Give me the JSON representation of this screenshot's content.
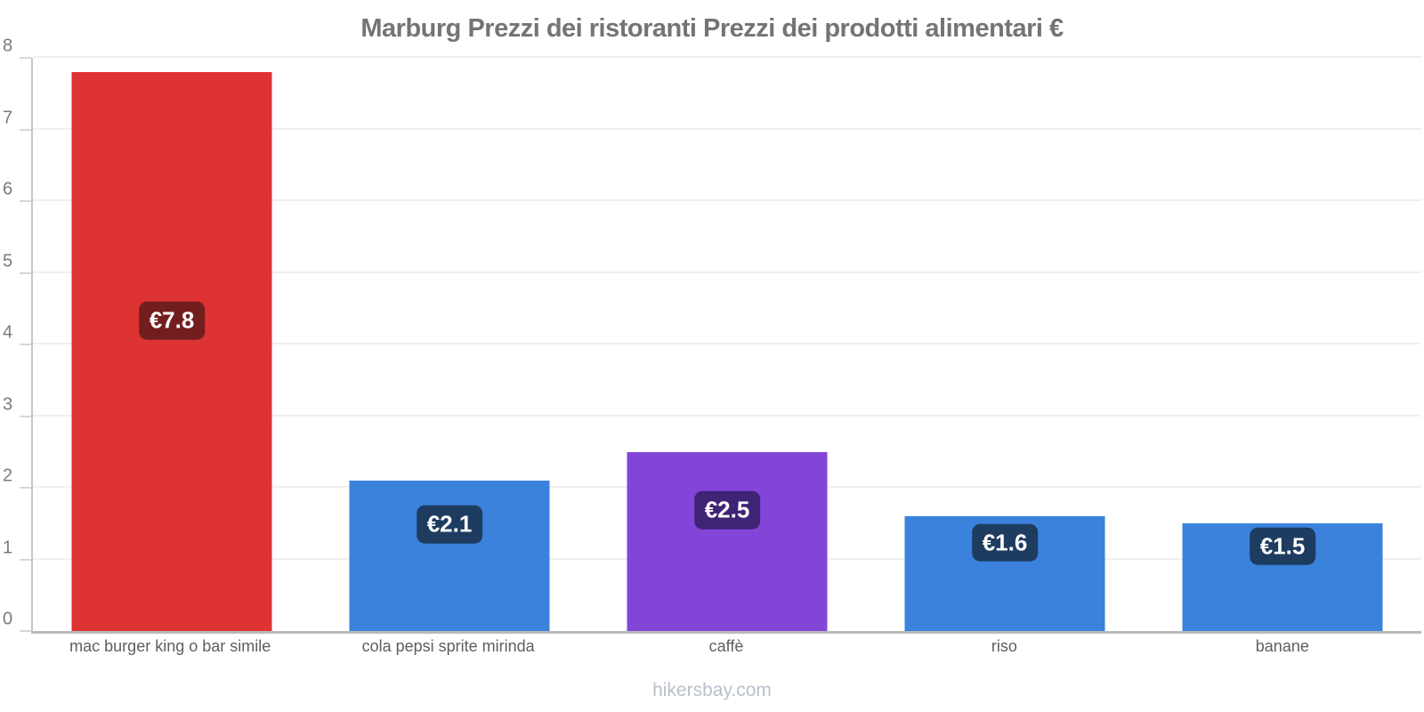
{
  "title": "Marburg Prezzi dei ristoranti Prezzi dei prodotti alimentari €",
  "footer": "hikersbay.com",
  "colors": {
    "red_bar": "#dd3333",
    "blue_bar": "#3a82dc",
    "purple_bar": "#8345d8",
    "red_badge": "#731e1e",
    "blue_badge": "#1d3c60",
    "purple_badge": "#3f2375",
    "title_text": "#747474",
    "axis_text": "#7a7a7a",
    "xlabel_text": "#5e5e5e",
    "footer_text": "#b9c0cb",
    "gridline": "#efefef"
  },
  "chart_data": {
    "type": "bar",
    "title": "Marburg Prezzi dei ristoranti Prezzi dei prodotti alimentari €",
    "xlabel": "",
    "ylabel": "",
    "ylim": [
      0,
      8
    ],
    "yticks": [
      0,
      1,
      2,
      3,
      4,
      5,
      6,
      7,
      8
    ],
    "grid": true,
    "legend": false,
    "currency": "€",
    "categories": [
      "mac burger king o bar simile",
      "cola pepsi sprite mirinda",
      "caffè",
      "riso",
      "banane"
    ],
    "values": [
      7.8,
      2.1,
      2.5,
      1.6,
      1.5
    ],
    "value_labels": [
      "€7.8",
      "€2.1",
      "€2.5",
      "€1.6",
      "€1.5"
    ],
    "bar_colors": [
      "#dd3333",
      "#3a82dc",
      "#8345d8",
      "#3a82dc",
      "#3a82dc"
    ],
    "badge_colors": [
      "#731e1e",
      "#1d3c60",
      "#3f2375",
      "#1d3c60",
      "#1d3c60"
    ]
  }
}
